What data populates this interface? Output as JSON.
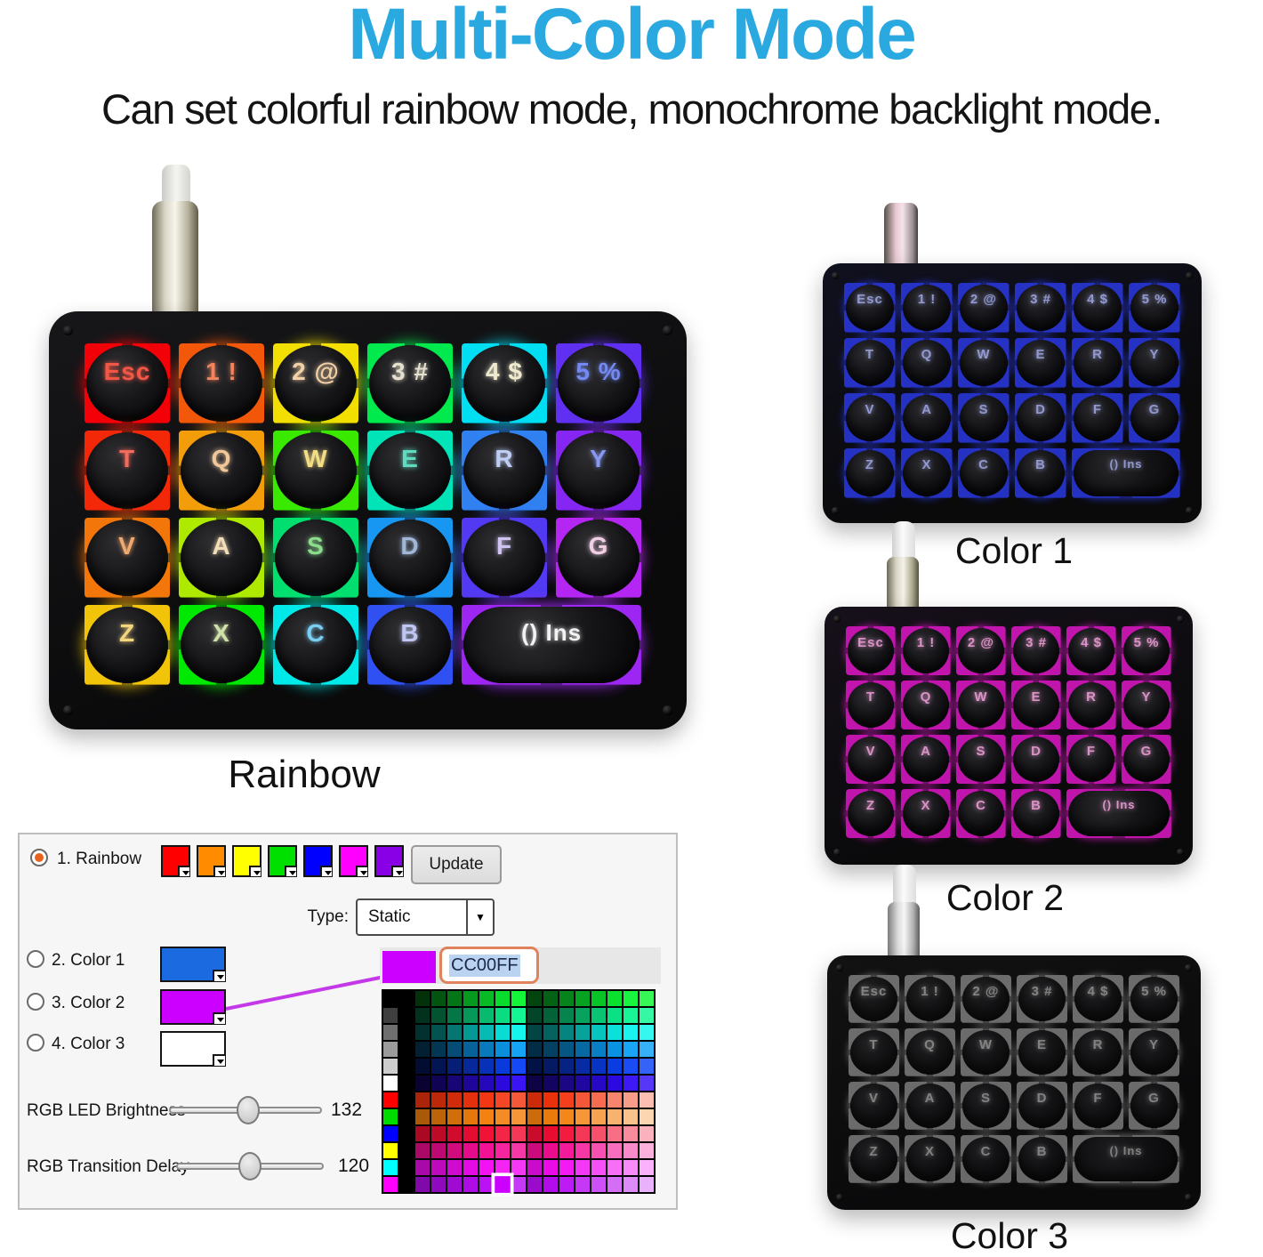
{
  "header": {
    "title": "Multi-Color Mode",
    "title_color": "#2aa9e1",
    "subtitle": "Can set colorful rainbow mode, monochrome backlight mode."
  },
  "keyboards": {
    "key_rows": [
      [
        "Esc",
        "1 !",
        "2 @",
        "3 #",
        "4 $",
        "5 %"
      ],
      [
        "T",
        "Q",
        "W",
        "E",
        "R",
        "Y"
      ],
      [
        "V",
        "A",
        "S",
        "D",
        "F",
        "G"
      ],
      [
        "Z",
        "X",
        "C",
        "B",
        "() Ins"
      ]
    ],
    "rainbow": {
      "caption": "Rainbow",
      "board_color": "#17171a",
      "legend_colors": [
        [
          "#ff5a48",
          "#ff8a60",
          "#ffdcb0",
          "#f2ecd8",
          "#fbf6d8",
          "#7a90ff"
        ],
        [
          "#ff7060",
          "#ffd2a2",
          "#ffe98c",
          "#66e6c9",
          "#c8d8ff",
          "#8f9ffd"
        ],
        [
          "#ffb274",
          "#ffe9c2",
          "#92e892",
          "#a9c1e2",
          "#d9cdfe",
          "#ffd9f1"
        ],
        [
          "#ffe284",
          "#daeeb2",
          "#82d9ff",
          "#c9d1ff",
          "#ffffff"
        ]
      ],
      "glow_colors": [
        [
          "hsl(358,100%,50%)",
          "hsl(20,100%,52%)",
          "hsl(55,100%,50%)",
          "hsl(140,100%,48%)",
          "hsl(185,100%,50%)",
          "hsl(255,100%,60%)"
        ],
        [
          "hsl(8,100%,52%)",
          "hsl(38,100%,52%)",
          "hsl(105,100%,48%)",
          "hsl(168,100%,47%)",
          "hsl(215,100%,60%)",
          "hsl(268,100%,58%)"
        ],
        [
          "hsl(28,100%,52%)",
          "hsl(75,100%,48%)",
          "hsl(150,100%,46%)",
          "hsl(205,100%,55%)",
          "hsl(248,100%,62%)",
          "hsl(282,100%,58%)"
        ],
        [
          "hsl(48,100%,52%)",
          "hsl(120,100%,48%)",
          "hsl(180,100%,48%)",
          "hsl(230,100%,60%)",
          "hsl(275,100%,58%)"
        ]
      ]
    },
    "color1": {
      "caption": "Color 1",
      "glow": "#2c3cf0",
      "legend": "#b4bcff",
      "board_color": "#10111f"
    },
    "color2": {
      "caption": "Color 2",
      "glow": "#e018c8",
      "legend": "#ffaae6",
      "board_color": "#16101a"
    },
    "color3": {
      "caption": "Color 3",
      "glow": "#c8c8c8",
      "legend": "#f4f4f4",
      "board_color": "#121212"
    }
  },
  "settings": {
    "modes": [
      {
        "label": "1. Rainbow",
        "selected": true
      },
      {
        "label": "2. Color 1",
        "selected": false,
        "swatch": "#1b6ae0"
      },
      {
        "label": "3. Color 2",
        "selected": false,
        "swatch": "#cc00ff"
      },
      {
        "label": "4. Color 3",
        "selected": false,
        "swatch": "#ffffff"
      }
    ],
    "rainbow_swatches": [
      "#ff0000",
      "#ff8c00",
      "#ffff00",
      "#00e000",
      "#0000ff",
      "#ff00ff",
      "#8a00e6"
    ],
    "update_label": "Update",
    "type_label": "Type:",
    "type_value": "Static",
    "link_line_color": "#c438e8",
    "sliders": [
      {
        "label": "RGB LED Brightness",
        "value": "132"
      },
      {
        "label": "RGB Transition Delay",
        "value": "120"
      }
    ],
    "picker": {
      "hex_value": "CC00FF",
      "current_color": "#cc00ff",
      "selected_cell": {
        "row": 11,
        "col": 7
      },
      "palette_rows": [
        [
          "#000000",
          "#000000",
          "hsl(130,92%,10%)",
          "hsl(130,92%,17%)",
          "hsl(130,92%,24%)",
          "hsl(130,92%,31%)",
          "hsl(130,92%,38%)",
          "hsl(130,92%,45%)",
          "hsl(130,92%,52%)",
          "hsl(130,92%,14%)",
          "hsl(130,92%,20%)",
          "hsl(130,92%,27%)",
          "hsl(130,92%,33%)",
          "hsl(130,92%,40%)",
          "hsl(130,92%,46%)",
          "hsl(130,92%,53%)",
          "hsl(130,92%,59%)"
        ],
        [
          "#3f3f3f",
          "#000000",
          "hsl(154,92%,10%)",
          "hsl(154,92%,17%)",
          "hsl(154,92%,24%)",
          "hsl(154,92%,31%)",
          "hsl(154,92%,38%)",
          "hsl(154,92%,45%)",
          "hsl(154,92%,52%)",
          "hsl(154,92%,14%)",
          "hsl(154,92%,20%)",
          "hsl(154,92%,27%)",
          "hsl(154,92%,33%)",
          "hsl(154,92%,40%)",
          "hsl(154,92%,46%)",
          "hsl(154,92%,53%)",
          "hsl(154,92%,59%)"
        ],
        [
          "#6e6e6e",
          "#000000",
          "hsl(178,92%,10%)",
          "hsl(178,92%,17%)",
          "hsl(178,92%,24%)",
          "hsl(178,92%,31%)",
          "hsl(178,92%,38%)",
          "hsl(178,92%,45%)",
          "hsl(178,92%,52%)",
          "hsl(178,92%,14%)",
          "hsl(178,92%,20%)",
          "hsl(178,92%,27%)",
          "hsl(178,92%,33%)",
          "hsl(178,92%,40%)",
          "hsl(178,92%,46%)",
          "hsl(178,92%,53%)",
          "hsl(178,92%,59%)"
        ],
        [
          "#9b9b9b",
          "#000000",
          "hsl(202,92%,10%)",
          "hsl(202,92%,17%)",
          "hsl(202,92%,24%)",
          "hsl(202,92%,31%)",
          "hsl(202,92%,38%)",
          "hsl(202,92%,45%)",
          "hsl(202,92%,52%)",
          "hsl(202,92%,14%)",
          "hsl(202,92%,20%)",
          "hsl(202,92%,27%)",
          "hsl(202,92%,33%)",
          "hsl(202,92%,40%)",
          "hsl(202,92%,46%)",
          "hsl(202,92%,53%)",
          "hsl(202,92%,59%)"
        ],
        [
          "#cdcdcd",
          "#000000",
          "hsl(226,92%,10%)",
          "hsl(226,92%,17%)",
          "hsl(226,92%,24%)",
          "hsl(226,92%,31%)",
          "hsl(226,92%,38%)",
          "hsl(226,92%,45%)",
          "hsl(226,92%,52%)",
          "hsl(226,92%,14%)",
          "hsl(226,92%,20%)",
          "hsl(226,92%,27%)",
          "hsl(226,92%,33%)",
          "hsl(226,92%,40%)",
          "hsl(226,92%,46%)",
          "hsl(226,92%,53%)",
          "hsl(226,92%,59%)"
        ],
        [
          "#ffffff",
          "#000000",
          "hsl(250,92%,10%)",
          "hsl(250,92%,17%)",
          "hsl(250,92%,24%)",
          "hsl(250,92%,31%)",
          "hsl(250,92%,38%)",
          "hsl(250,92%,45%)",
          "hsl(250,92%,52%)",
          "hsl(250,92%,14%)",
          "hsl(250,92%,20%)",
          "hsl(250,92%,27%)",
          "hsl(250,92%,33%)",
          "hsl(250,92%,40%)",
          "hsl(250,92%,46%)",
          "hsl(250,92%,53%)",
          "hsl(250,92%,59%)"
        ],
        [
          "#ff0000",
          "#000000",
          "hsl(10,90%,35%)",
          "hsl(10,90%,39%)",
          "hsl(10,90%,43%)",
          "hsl(10,90%,47%)",
          "hsl(10,90%,51%)",
          "hsl(10,90%,55%)",
          "hsl(10,90%,59%)",
          "hsl(10,90%,42%)",
          "hsl(10,90%,48%)",
          "hsl(10,90%,53%)",
          "hsl(10,90%,59%)",
          "hsl(10,90%,64%)",
          "hsl(10,90%,70%)",
          "hsl(10,90%,76%)",
          "hsl(10,90%,84%)"
        ],
        [
          "#00dc00",
          "#000000",
          "hsl(30,90%,35%)",
          "hsl(30,90%,39%)",
          "hsl(30,90%,43%)",
          "hsl(30,90%,47%)",
          "hsl(30,90%,51%)",
          "hsl(30,90%,55%)",
          "hsl(30,90%,59%)",
          "hsl(30,90%,42%)",
          "hsl(30,90%,48%)",
          "hsl(30,90%,53%)",
          "hsl(30,90%,59%)",
          "hsl(30,90%,64%)",
          "hsl(30,90%,70%)",
          "hsl(30,90%,76%)",
          "hsl(30,90%,84%)"
        ],
        [
          "#0000ff",
          "#000000",
          "hsl(350,90%,35%)",
          "hsl(350,90%,39%)",
          "hsl(350,90%,43%)",
          "hsl(350,90%,47%)",
          "hsl(350,90%,51%)",
          "hsl(350,90%,55%)",
          "hsl(350,90%,59%)",
          "hsl(350,90%,42%)",
          "hsl(350,90%,48%)",
          "hsl(350,90%,53%)",
          "hsl(350,90%,59%)",
          "hsl(350,90%,64%)",
          "hsl(350,90%,70%)",
          "hsl(350,90%,76%)",
          "hsl(350,90%,84%)"
        ],
        [
          "#ffff00",
          "#000000",
          "hsl(325,90%,35%)",
          "hsl(325,90%,39%)",
          "hsl(325,90%,43%)",
          "hsl(325,90%,47%)",
          "hsl(325,90%,51%)",
          "hsl(325,90%,55%)",
          "hsl(325,90%,59%)",
          "hsl(325,90%,42%)",
          "hsl(325,90%,48%)",
          "hsl(325,90%,53%)",
          "hsl(325,90%,59%)",
          "hsl(325,90%,64%)",
          "hsl(325,90%,70%)",
          "hsl(325,90%,76%)",
          "hsl(325,90%,84%)"
        ],
        [
          "#00ffff",
          "#000000",
          "hsl(300,90%,35%)",
          "hsl(300,90%,39%)",
          "hsl(300,90%,43%)",
          "hsl(300,90%,47%)",
          "hsl(300,90%,51%)",
          "hsl(300,90%,55%)",
          "hsl(300,90%,59%)",
          "hsl(300,90%,42%)",
          "hsl(300,90%,48%)",
          "hsl(300,90%,53%)",
          "hsl(300,90%,59%)",
          "hsl(300,90%,64%)",
          "hsl(300,90%,70%)",
          "hsl(300,90%,76%)",
          "hsl(300,90%,84%)"
        ],
        [
          "#ff00ff",
          "#000000",
          "hsl(285,90%,35%)",
          "hsl(285,90%,39%)",
          "hsl(285,90%,43%)",
          "hsl(285,90%,47%)",
          "hsl(285,90%,51%)",
          "#cc00ff",
          "hsl(285,90%,59%)",
          "hsl(285,90%,42%)",
          "hsl(285,90%,48%)",
          "hsl(285,90%,53%)",
          "hsl(285,90%,59%)",
          "hsl(285,90%,64%)",
          "hsl(285,90%,70%)",
          "hsl(285,90%,76%)",
          "hsl(285,90%,84%)"
        ]
      ]
    }
  }
}
